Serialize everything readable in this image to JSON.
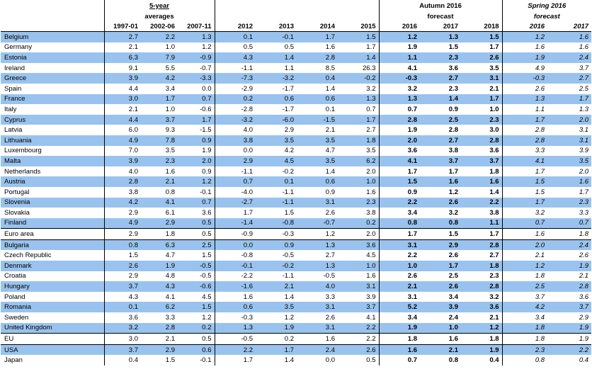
{
  "header": {
    "group_5yr_line1": "5-year",
    "group_5yr_line2": "averages",
    "group_autumn_line1": "Autumn 2016",
    "group_autumn_line2": "forecast",
    "group_spring_line1": "Spring 2016",
    "group_spring_line2": "forecast",
    "columns": [
      "1997-01",
      "2002-06",
      "2007-11",
      "2012",
      "2013",
      "2014",
      "2015",
      "2016",
      "2017",
      "2018",
      "2016",
      "2017"
    ]
  },
  "rows": [
    {
      "name": "Belgium",
      "v": [
        "2.7",
        "2.2",
        "1.3",
        "0.1",
        "-0.1",
        "1.7",
        "1.5",
        "1.2",
        "1.3",
        "1.5",
        "1.2",
        "1.6"
      ]
    },
    {
      "name": "Germany",
      "v": [
        "2.1",
        "1.0",
        "1.2",
        "0.5",
        "0.5",
        "1.6",
        "1.7",
        "1.9",
        "1.5",
        "1.7",
        "1.6",
        "1.6"
      ]
    },
    {
      "name": "Estonia",
      "v": [
        "6.3",
        "7.9",
        "-0.9",
        "4.3",
        "1.4",
        "2.8",
        "1.4",
        "1.1",
        "2.3",
        "2.6",
        "1.9",
        "2.4"
      ]
    },
    {
      "name": "Ireland",
      "v": [
        "9.1",
        "5.5",
        "-0.7",
        "-1.1",
        "1.1",
        "8.5",
        "26.3",
        "4.1",
        "3.6",
        "3.5",
        "4.9",
        "3.7"
      ]
    },
    {
      "name": "Greece",
      "v": [
        "3.9",
        "4.2",
        "-3.3",
        "-7.3",
        "-3.2",
        "0.4",
        "-0.2",
        "-0.3",
        "2.7",
        "3.1",
        "-0.3",
        "2.7"
      ]
    },
    {
      "name": "Spain",
      "v": [
        "4.4",
        "3.4",
        "0.0",
        "-2.9",
        "-1.7",
        "1.4",
        "3.2",
        "3.2",
        "2.3",
        "2.1",
        "2.6",
        "2.5"
      ]
    },
    {
      "name": "France",
      "v": [
        "3.0",
        "1.7",
        "0.7",
        "0.2",
        "0.6",
        "0.6",
        "1.3",
        "1.3",
        "1.4",
        "1.7",
        "1.3",
        "1.7"
      ]
    },
    {
      "name": "Italy",
      "v": [
        "2.1",
        "1.0",
        "-0.6",
        "-2.8",
        "-1.7",
        "0.1",
        "0.7",
        "0.7",
        "0.9",
        "1.0",
        "1.1",
        "1.3"
      ]
    },
    {
      "name": "Cyprus",
      "v": [
        "4.4",
        "3.7",
        "1.7",
        "-3.2",
        "-6.0",
        "-1.5",
        "1.7",
        "2.8",
        "2.5",
        "2.3",
        "1.7",
        "2.0"
      ]
    },
    {
      "name": "Latvia",
      "v": [
        "6.0",
        "9.3",
        "-1.5",
        "4.0",
        "2.9",
        "2.1",
        "2.7",
        "1.9",
        "2.8",
        "3.0",
        "2.8",
        "3.1"
      ]
    },
    {
      "name": "Lithuania",
      "v": [
        "4.9",
        "7.8",
        "0.9",
        "3.8",
        "3.5",
        "3.5",
        "1.8",
        "2.0",
        "2.7",
        "2.8",
        "2.8",
        "3.1"
      ]
    },
    {
      "name": "Luxembourg",
      "v": [
        "7.0",
        "3.5",
        "1.9",
        "0.0",
        "4.2",
        "4.7",
        "3.5",
        "3.6",
        "3.8",
        "3.6",
        "3.3",
        "3.9"
      ]
    },
    {
      "name": "Malta",
      "v": [
        "3.9",
        "2.3",
        "2.0",
        "2.9",
        "4.5",
        "3.5",
        "6.2",
        "4.1",
        "3.7",
        "3.7",
        "4.1",
        "3.5"
      ]
    },
    {
      "name": "Netherlands",
      "v": [
        "4.0",
        "1.6",
        "0.9",
        "-1.1",
        "-0.2",
        "1.4",
        "2.0",
        "1.7",
        "1.7",
        "1.8",
        "1.7",
        "2.0"
      ]
    },
    {
      "name": "Austria",
      "v": [
        "2.8",
        "2.1",
        "1.2",
        "0.7",
        "0.1",
        "0.6",
        "1.0",
        "1.5",
        "1.6",
        "1.6",
        "1.5",
        "1.6"
      ]
    },
    {
      "name": "Portugal",
      "v": [
        "3.8",
        "0.8",
        "-0.1",
        "-4.0",
        "-1.1",
        "0.9",
        "1.6",
        "0.9",
        "1.2",
        "1.4",
        "1.5",
        "1.7"
      ]
    },
    {
      "name": "Slovenia",
      "v": [
        "4.2",
        "4.1",
        "0.7",
        "-2.7",
        "-1.1",
        "3.1",
        "2.3",
        "2.2",
        "2.6",
        "2.2",
        "1.7",
        "2.3"
      ]
    },
    {
      "name": "Slovakia",
      "v": [
        "2.9",
        "6.1",
        "3.6",
        "1.7",
        "1.5",
        "2.6",
        "3.8",
        "3.4",
        "3.2",
        "3.8",
        "3.2",
        "3.3"
      ]
    },
    {
      "name": "Finland",
      "v": [
        "4.9",
        "2.9",
        "0.5",
        "-1.4",
        "-0.8",
        "-0.7",
        "0.2",
        "0.8",
        "0.8",
        "1.1",
        "0.7",
        "0.7"
      ]
    },
    {
      "name": "Euro area",
      "v": [
        "2.9",
        "1.8",
        "0.5",
        "-0.9",
        "-0.3",
        "1.2",
        "2.0",
        "1.7",
        "1.5",
        "1.7",
        "1.6",
        "1.8"
      ]
    },
    {
      "name": "Bulgaria",
      "v": [
        "0.8",
        "6.3",
        "2.5",
        "0.0",
        "0.9",
        "1.3",
        "3.6",
        "3.1",
        "2.9",
        "2.8",
        "2.0",
        "2.4"
      ]
    },
    {
      "name": "Czech Republic",
      "v": [
        "1.5",
        "4.7",
        "1.5",
        "-0.8",
        "-0.5",
        "2.7",
        "4.5",
        "2.2",
        "2.6",
        "2.7",
        "2.1",
        "2.6"
      ]
    },
    {
      "name": "Denmark",
      "v": [
        "2.6",
        "1.9",
        "-0.5",
        "-0.1",
        "-0.2",
        "1.3",
        "1.0",
        "1.0",
        "1.7",
        "1.8",
        "1.2",
        "1.9"
      ]
    },
    {
      "name": "Croatia",
      "v": [
        "2.9",
        "4.8",
        "-0.5",
        "-2.2",
        "-1.1",
        "-0.5",
        "1.6",
        "2.6",
        "2.5",
        "2.3",
        "1.8",
        "2.1"
      ]
    },
    {
      "name": "Hungary",
      "v": [
        "3.7",
        "4.3",
        "-0.6",
        "-1.6",
        "2.1",
        "4.0",
        "3.1",
        "2.1",
        "2.6",
        "2.8",
        "2.5",
        "2.8"
      ]
    },
    {
      "name": "Poland",
      "v": [
        "4.3",
        "4.1",
        "4.5",
        "1.6",
        "1.4",
        "3.3",
        "3.9",
        "3.1",
        "3.4",
        "3.2",
        "3.7",
        "3.6"
      ]
    },
    {
      "name": "Romania",
      "v": [
        "0.1",
        "6.2",
        "1.5",
        "0.6",
        "3.5",
        "3.1",
        "3.7",
        "5.2",
        "3.9",
        "3.6",
        "4.2",
        "3.7"
      ]
    },
    {
      "name": "Sweden",
      "v": [
        "3.6",
        "3.3",
        "1.2",
        "-0.3",
        "1.2",
        "2.6",
        "4.1",
        "3.4",
        "2.4",
        "2.1",
        "3.4",
        "2.9"
      ]
    },
    {
      "name": "United Kingdom",
      "v": [
        "3.2",
        "2.8",
        "0.2",
        "1.3",
        "1.9",
        "3.1",
        "2.2",
        "1.9",
        "1.0",
        "1.2",
        "1.8",
        "1.9"
      ]
    },
    {
      "name": "EU",
      "v": [
        "3.0",
        "2.1",
        "0.5",
        "-0.5",
        "0.2",
        "1.6",
        "2.2",
        "1.8",
        "1.6",
        "1.8",
        "1.8",
        "1.9"
      ]
    },
    {
      "name": "USA",
      "v": [
        "3.7",
        "2.9",
        "0.6",
        "2.2",
        "1.7",
        "2.4",
        "2.6",
        "1.6",
        "2.1",
        "1.9",
        "2.3",
        "2.2"
      ]
    },
    {
      "name": "Japan",
      "v": [
        "0.4",
        "1.5",
        "-0.1",
        "1.7",
        "1.4",
        "0.0",
        "0.5",
        "0.7",
        "0.8",
        "0.4",
        "0.8",
        "0.4"
      ]
    }
  ],
  "colors": {
    "row_highlight": "#99c3ee"
  }
}
